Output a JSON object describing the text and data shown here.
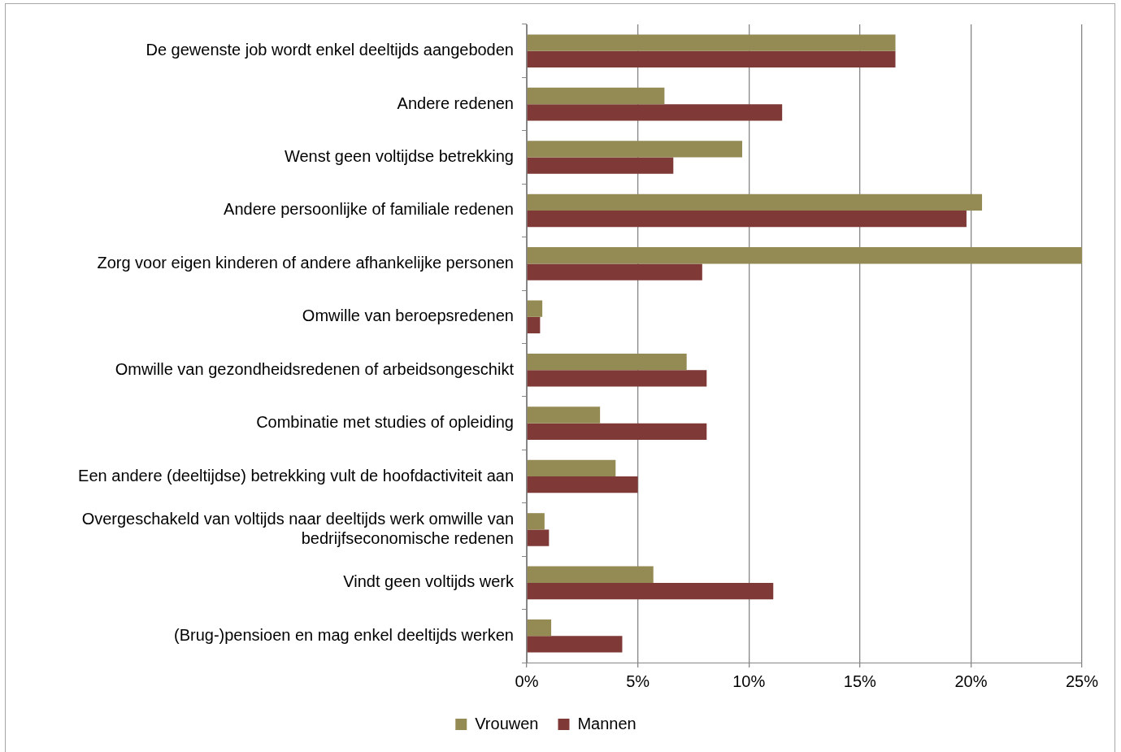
{
  "chart_data": {
    "type": "bar",
    "orientation": "horizontal",
    "categories": [
      "De gewenste job wordt enkel deeltijds aangeboden",
      "Andere redenen",
      "Wenst geen voltijdse betrekking",
      "Andere persoonlijke of familiale redenen",
      "Zorg voor eigen kinderen of andere afhankelijke personen",
      "Omwille van beroepsredenen",
      "Omwille van gezondheidsredenen of arbeidsongeschikt",
      "Combinatie met studies of opleiding",
      "Een andere (deeltijdse) betrekking vult de hoofdactiviteit aan",
      "Overgeschakeld van voltijds naar deeltijds werk omwille van bedrijfseconomische redenen",
      "Vindt geen voltijds werk",
      "(Brug-)pensioen en mag enkel deeltijds werken"
    ],
    "series": [
      {
        "name": "Vrouwen",
        "color": "#948a54",
        "values": [
          16.6,
          6.2,
          9.7,
          20.5,
          25.0,
          0.7,
          7.2,
          3.3,
          4.0,
          0.8,
          5.7,
          1.1
        ]
      },
      {
        "name": "Mannen",
        "color": "#7f3a37",
        "values": [
          16.6,
          11.5,
          6.6,
          19.8,
          7.9,
          0.6,
          8.1,
          8.1,
          5.0,
          1.0,
          11.1,
          4.3
        ]
      }
    ],
    "xlim": [
      0,
      25
    ],
    "xticks": [
      {
        "value": 0,
        "label": "0%"
      },
      {
        "value": 5,
        "label": "5%"
      },
      {
        "value": 10,
        "label": "10%"
      },
      {
        "value": 15,
        "label": "15%"
      },
      {
        "value": 20,
        "label": "20%"
      },
      {
        "value": 25,
        "label": "25%"
      }
    ],
    "grid": "x",
    "legend": "bottom"
  }
}
